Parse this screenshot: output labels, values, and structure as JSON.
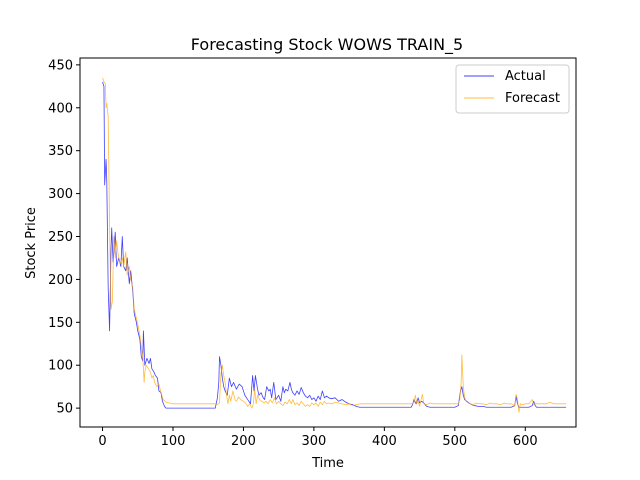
{
  "chart_data": {
    "type": "line",
    "title": "Forecasting Stock WOWS TRAIN_5",
    "xlabel": "Time",
    "ylabel": "Stock Price",
    "xlim": [
      -32,
      672
    ],
    "ylim": [
      28,
      458
    ],
    "xticks": [
      0,
      100,
      200,
      300,
      400,
      500,
      600
    ],
    "yticks": [
      50,
      100,
      150,
      200,
      250,
      300,
      350,
      400,
      450
    ],
    "grid": false,
    "legend_position": "top-right",
    "series": [
      {
        "name": "Actual",
        "color": "#0000ff",
        "points": [
          [
            0,
            430
          ],
          [
            2,
            425
          ],
          [
            3,
            310
          ],
          [
            5,
            340
          ],
          [
            6,
            315
          ],
          [
            8,
            190
          ],
          [
            10,
            140
          ],
          [
            12,
            235
          ],
          [
            13,
            260
          ],
          [
            15,
            220
          ],
          [
            18,
            255
          ],
          [
            20,
            215
          ],
          [
            23,
            225
          ],
          [
            26,
            215
          ],
          [
            28,
            250
          ],
          [
            30,
            215
          ],
          [
            33,
            210
          ],
          [
            35,
            225
          ],
          [
            38,
            195
          ],
          [
            40,
            210
          ],
          [
            43,
            185
          ],
          [
            45,
            160
          ],
          [
            48,
            150
          ],
          [
            50,
            140
          ],
          [
            53,
            130
          ],
          [
            55,
            110
          ],
          [
            57,
            105
          ],
          [
            58,
            140
          ],
          [
            60,
            100
          ],
          [
            63,
            108
          ],
          [
            66,
            102
          ],
          [
            68,
            108
          ],
          [
            70,
            96
          ],
          [
            73,
            92
          ],
          [
            75,
            88
          ],
          [
            78,
            85
          ],
          [
            80,
            70
          ],
          [
            83,
            68
          ],
          [
            85,
            58
          ],
          [
            88,
            52
          ],
          [
            90,
            50
          ],
          [
            95,
            50
          ],
          [
            100,
            50
          ],
          [
            120,
            50
          ],
          [
            140,
            50
          ],
          [
            160,
            50
          ],
          [
            163,
            62
          ],
          [
            165,
            80
          ],
          [
            166,
            110
          ],
          [
            168,
            100
          ],
          [
            170,
            85
          ],
          [
            172,
            75
          ],
          [
            174,
            70
          ],
          [
            177,
            65
          ],
          [
            180,
            85
          ],
          [
            183,
            75
          ],
          [
            186,
            80
          ],
          [
            190,
            72
          ],
          [
            194,
            78
          ],
          [
            198,
            75
          ],
          [
            202,
            65
          ],
          [
            206,
            60
          ],
          [
            210,
            55
          ],
          [
            213,
            88
          ],
          [
            215,
            70
          ],
          [
            217,
            88
          ],
          [
            220,
            72
          ],
          [
            222,
            65
          ],
          [
            225,
            68
          ],
          [
            228,
            62
          ],
          [
            230,
            60
          ],
          [
            233,
            75
          ],
          [
            236,
            70
          ],
          [
            238,
            72
          ],
          [
            240,
            62
          ],
          [
            243,
            80
          ],
          [
            246,
            60
          ],
          [
            250,
            65
          ],
          [
            253,
            58
          ],
          [
            256,
            75
          ],
          [
            258,
            68
          ],
          [
            260,
            72
          ],
          [
            263,
            70
          ],
          [
            266,
            80
          ],
          [
            268,
            72
          ],
          [
            270,
            68
          ],
          [
            273,
            65
          ],
          [
            276,
            70
          ],
          [
            279,
            66
          ],
          [
            282,
            74
          ],
          [
            285,
            68
          ],
          [
            288,
            64
          ],
          [
            291,
            62
          ],
          [
            294,
            65
          ],
          [
            297,
            60
          ],
          [
            300,
            62
          ],
          [
            303,
            58
          ],
          [
            306,
            64
          ],
          [
            309,
            60
          ],
          [
            312,
            70
          ],
          [
            315,
            62
          ],
          [
            318,
            64
          ],
          [
            321,
            62
          ],
          [
            325,
            61
          ],
          [
            330,
            62
          ],
          [
            335,
            58
          ],
          [
            340,
            60
          ],
          [
            345,
            57
          ],
          [
            350,
            55
          ],
          [
            355,
            54
          ],
          [
            360,
            52
          ],
          [
            365,
            51
          ],
          [
            370,
            51
          ],
          [
            380,
            51
          ],
          [
            390,
            51
          ],
          [
            400,
            51
          ],
          [
            410,
            51
          ],
          [
            420,
            51
          ],
          [
            430,
            51
          ],
          [
            438,
            51
          ],
          [
            440,
            54
          ],
          [
            442,
            60
          ],
          [
            445,
            55
          ],
          [
            448,
            62
          ],
          [
            450,
            56
          ],
          [
            453,
            58
          ],
          [
            456,
            56
          ],
          [
            460,
            52
          ],
          [
            465,
            51
          ],
          [
            470,
            51
          ],
          [
            480,
            51
          ],
          [
            490,
            51
          ],
          [
            500,
            51
          ],
          [
            505,
            53
          ],
          [
            508,
            70
          ],
          [
            510,
            75
          ],
          [
            512,
            65
          ],
          [
            514,
            60
          ],
          [
            517,
            58
          ],
          [
            520,
            56
          ],
          [
            524,
            54
          ],
          [
            528,
            53
          ],
          [
            533,
            52
          ],
          [
            540,
            52
          ],
          [
            545,
            51
          ],
          [
            550,
            51
          ],
          [
            555,
            51
          ],
          [
            560,
            51
          ],
          [
            570,
            51
          ],
          [
            580,
            51
          ],
          [
            585,
            53
          ],
          [
            587,
            64
          ],
          [
            589,
            55
          ],
          [
            591,
            51
          ],
          [
            600,
            51
          ],
          [
            605,
            51
          ],
          [
            610,
            53
          ],
          [
            612,
            58
          ],
          [
            614,
            53
          ],
          [
            616,
            51
          ],
          [
            620,
            51
          ],
          [
            630,
            51
          ],
          [
            640,
            51
          ],
          [
            650,
            51
          ],
          [
            658,
            51
          ]
        ]
      },
      {
        "name": "Forecast",
        "color": "#ffa500",
        "points": [
          [
            0,
            435
          ],
          [
            2,
            430
          ],
          [
            4,
            428
          ],
          [
            5,
            400
          ],
          [
            6,
            405
          ],
          [
            8,
            390
          ],
          [
            10,
            260
          ],
          [
            12,
            165
          ],
          [
            14,
            175
          ],
          [
            16,
            250
          ],
          [
            18,
            225
          ],
          [
            20,
            245
          ],
          [
            22,
            230
          ],
          [
            25,
            218
          ],
          [
            28,
            225
          ],
          [
            30,
            215
          ],
          [
            33,
            232
          ],
          [
            35,
            205
          ],
          [
            38,
            215
          ],
          [
            40,
            200
          ],
          [
            43,
            190
          ],
          [
            45,
            165
          ],
          [
            48,
            155
          ],
          [
            50,
            148
          ],
          [
            53,
            135
          ],
          [
            55,
            122
          ],
          [
            57,
            112
          ],
          [
            59,
            80
          ],
          [
            60,
            92
          ],
          [
            62,
            100
          ],
          [
            65,
            96
          ],
          [
            68,
            92
          ],
          [
            70,
            85
          ],
          [
            72,
            88
          ],
          [
            74,
            80
          ],
          [
            77,
            75
          ],
          [
            80,
            78
          ],
          [
            83,
            68
          ],
          [
            86,
            60
          ],
          [
            90,
            57
          ],
          [
            95,
            56
          ],
          [
            100,
            55
          ],
          [
            120,
            55
          ],
          [
            140,
            55
          ],
          [
            160,
            55
          ],
          [
            163,
            54
          ],
          [
            166,
            56
          ],
          [
            168,
            90
          ],
          [
            170,
            100
          ],
          [
            172,
            88
          ],
          [
            174,
            80
          ],
          [
            176,
            65
          ],
          [
            178,
            55
          ],
          [
            180,
            65
          ],
          [
            182,
            58
          ],
          [
            185,
            70
          ],
          [
            188,
            60
          ],
          [
            190,
            58
          ],
          [
            193,
            63
          ],
          [
            196,
            60
          ],
          [
            200,
            58
          ],
          [
            203,
            56
          ],
          [
            206,
            52
          ],
          [
            209,
            55
          ],
          [
            212,
            50
          ],
          [
            214,
            55
          ],
          [
            216,
            72
          ],
          [
            218,
            55
          ],
          [
            220,
            65
          ],
          [
            223,
            60
          ],
          [
            226,
            58
          ],
          [
            229,
            56
          ],
          [
            232,
            58
          ],
          [
            235,
            55
          ],
          [
            238,
            60
          ],
          [
            241,
            56
          ],
          [
            244,
            62
          ],
          [
            247,
            55
          ],
          [
            250,
            58
          ],
          [
            253,
            55
          ],
          [
            256,
            53
          ],
          [
            259,
            57
          ],
          [
            262,
            55
          ],
          [
            265,
            60
          ],
          [
            268,
            55
          ],
          [
            270,
            60
          ],
          [
            273,
            54
          ],
          [
            276,
            56
          ],
          [
            279,
            53
          ],
          [
            282,
            58
          ],
          [
            285,
            55
          ],
          [
            288,
            52
          ],
          [
            291,
            54
          ],
          [
            294,
            52
          ],
          [
            297,
            56
          ],
          [
            300,
            54
          ],
          [
            303,
            56
          ],
          [
            306,
            52
          ],
          [
            309,
            57
          ],
          [
            312,
            54
          ],
          [
            315,
            58
          ],
          [
            318,
            55
          ],
          [
            321,
            56
          ],
          [
            325,
            55
          ],
          [
            330,
            57
          ],
          [
            335,
            56
          ],
          [
            340,
            55
          ],
          [
            345,
            54
          ],
          [
            350,
            55
          ],
          [
            355,
            53
          ],
          [
            360,
            54
          ],
          [
            365,
            55
          ],
          [
            370,
            55
          ],
          [
            380,
            55
          ],
          [
            390,
            55
          ],
          [
            400,
            55
          ],
          [
            410,
            55
          ],
          [
            420,
            55
          ],
          [
            430,
            55
          ],
          [
            440,
            55
          ],
          [
            442,
            57
          ],
          [
            444,
            65
          ],
          [
            446,
            55
          ],
          [
            448,
            58
          ],
          [
            450,
            52
          ],
          [
            452,
            60
          ],
          [
            454,
            66
          ],
          [
            456,
            55
          ],
          [
            460,
            54
          ],
          [
            465,
            56
          ],
          [
            470,
            55
          ],
          [
            480,
            55
          ],
          [
            490,
            55
          ],
          [
            500,
            55
          ],
          [
            505,
            55
          ],
          [
            507,
            60
          ],
          [
            509,
            80
          ],
          [
            510,
            112
          ],
          [
            512,
            75
          ],
          [
            514,
            62
          ],
          [
            516,
            58
          ],
          [
            519,
            56
          ],
          [
            522,
            55
          ],
          [
            526,
            54
          ],
          [
            530,
            56
          ],
          [
            535,
            55
          ],
          [
            540,
            55
          ],
          [
            545,
            54
          ],
          [
            550,
            56
          ],
          [
            555,
            55
          ],
          [
            560,
            55
          ],
          [
            565,
            54
          ],
          [
            570,
            56
          ],
          [
            575,
            55
          ],
          [
            580,
            55
          ],
          [
            583,
            54
          ],
          [
            585,
            52
          ],
          [
            587,
            66
          ],
          [
            589,
            60
          ],
          [
            591,
            45
          ],
          [
            593,
            55
          ],
          [
            596,
            54
          ],
          [
            600,
            55
          ],
          [
            605,
            55
          ],
          [
            610,
            60
          ],
          [
            612,
            54
          ],
          [
            614,
            55
          ],
          [
            620,
            55
          ],
          [
            630,
            55
          ],
          [
            635,
            57
          ],
          [
            640,
            55
          ],
          [
            650,
            55
          ],
          [
            658,
            55
          ]
        ]
      }
    ]
  }
}
